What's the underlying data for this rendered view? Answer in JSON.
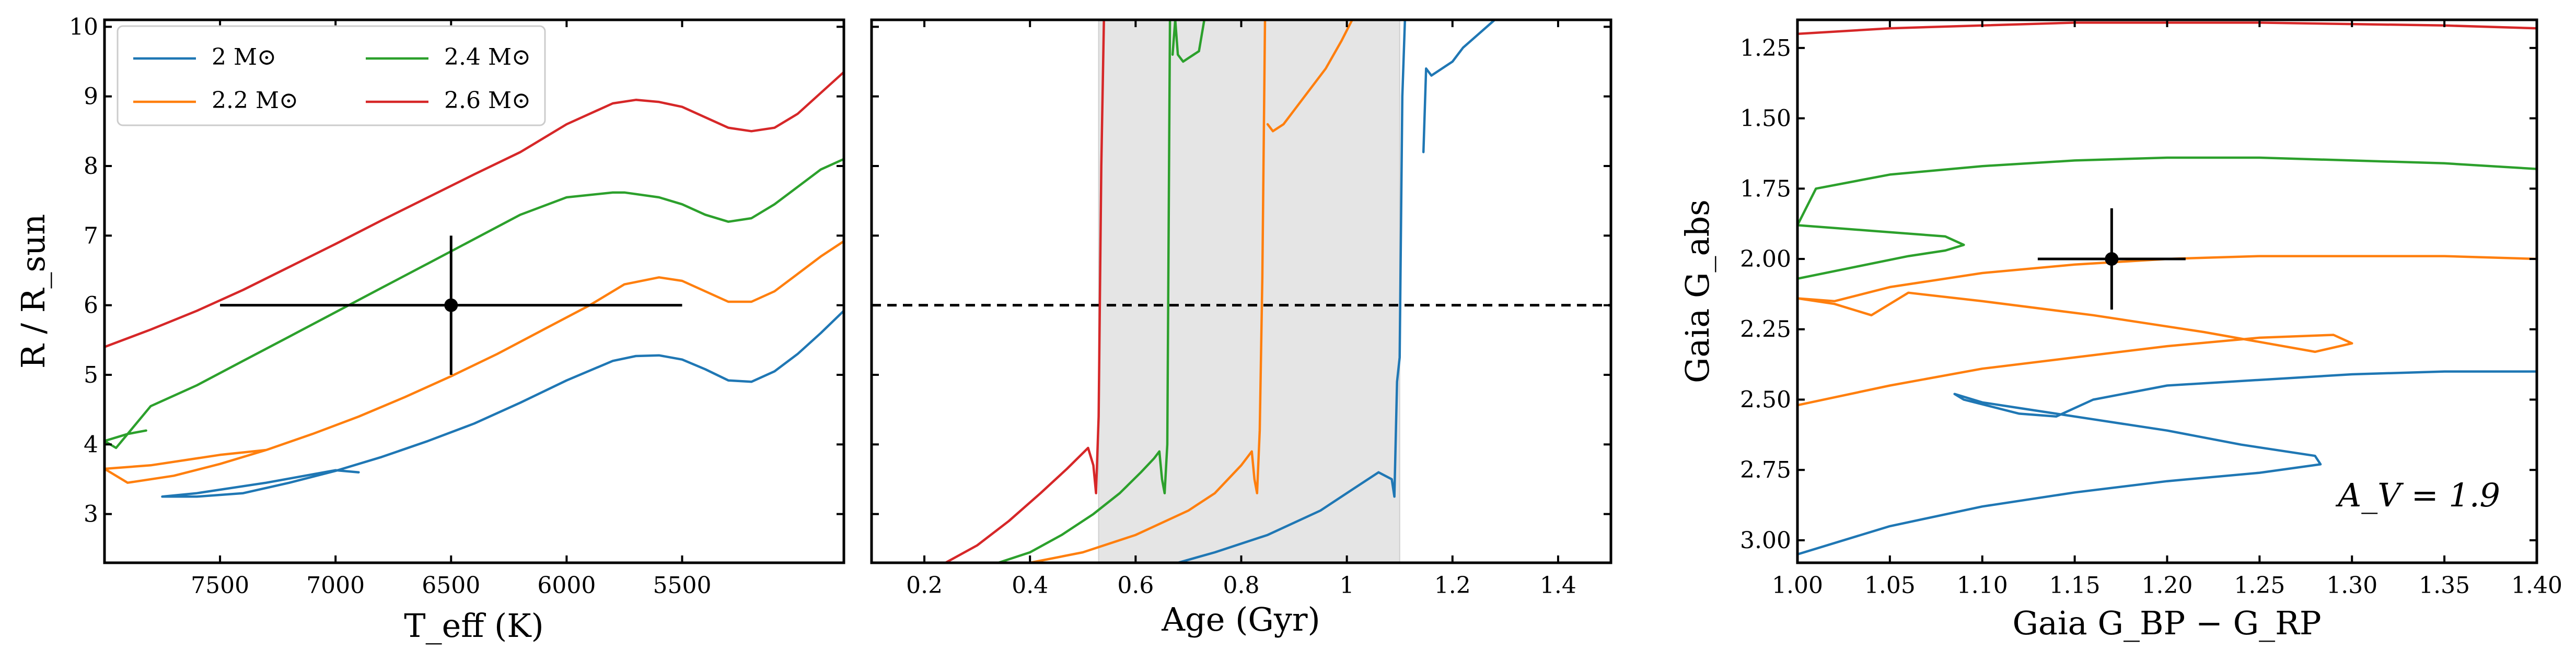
{
  "chart_data": [
    {
      "id": "hr",
      "type": "line",
      "xlabel": "T_eff (K)",
      "ylabel": "R / R_sun",
      "xlim": [
        8000,
        4800
      ],
      "ylim": [
        2.3,
        10.1
      ],
      "x_ticks": [
        7500,
        7000,
        6500,
        6000,
        5500
      ],
      "y_ticks": [
        3,
        4,
        5,
        6,
        7,
        8,
        9,
        10
      ],
      "legend": {
        "position": "top-left",
        "entries": [
          {
            "label": "2 M⊙",
            "color": "#1f77b4"
          },
          {
            "label": "2.2 M⊙",
            "color": "#ff7f0e"
          },
          {
            "label": "2.4 M⊙",
            "color": "#2ca02c"
          },
          {
            "label": "2.6 M⊙",
            "color": "#d62728"
          }
        ]
      },
      "series": [
        {
          "name": "2 M⊙",
          "color": "#1f77b4",
          "x": [
            6900,
            7000,
            7300,
            7600,
            7750,
            7600,
            7400,
            7200,
            7000,
            6800,
            6600,
            6400,
            6200,
            6000,
            5800,
            5700,
            5600,
            5500,
            5400,
            5300,
            5200,
            5100,
            5000,
            4900,
            4800
          ],
          "y": [
            3.6,
            3.63,
            3.45,
            3.3,
            3.25,
            3.25,
            3.3,
            3.45,
            3.62,
            3.82,
            4.05,
            4.3,
            4.6,
            4.92,
            5.2,
            5.27,
            5.28,
            5.22,
            5.08,
            4.92,
            4.9,
            5.05,
            5.3,
            5.6,
            5.92
          ]
        },
        {
          "name": "2.2 M⊙",
          "color": "#ff7f0e",
          "x": [
            7300,
            7500,
            7800,
            8000,
            7900,
            7700,
            7500,
            7300,
            7100,
            6900,
            6700,
            6500,
            6300,
            6100,
            5900,
            5750,
            5600,
            5500,
            5400,
            5300,
            5200,
            5100,
            5000,
            4900,
            4800
          ],
          "y": [
            3.92,
            3.85,
            3.7,
            3.65,
            3.45,
            3.55,
            3.72,
            3.92,
            4.15,
            4.4,
            4.68,
            4.98,
            5.3,
            5.65,
            6.0,
            6.3,
            6.4,
            6.35,
            6.2,
            6.05,
            6.05,
            6.2,
            6.45,
            6.7,
            6.92
          ]
        },
        {
          "name": "2.4 M⊙",
          "color": "#2ca02c",
          "x": [
            7820,
            7900,
            8000,
            7950,
            7800,
            7600,
            7400,
            7200,
            7000,
            6800,
            6600,
            6400,
            6200,
            6000,
            5800,
            5750,
            5600,
            5500,
            5400,
            5300,
            5200,
            5100,
            5000,
            4900,
            4800
          ],
          "y": [
            4.2,
            4.15,
            4.05,
            3.95,
            4.55,
            4.85,
            5.2,
            5.55,
            5.9,
            6.25,
            6.6,
            6.95,
            7.3,
            7.55,
            7.62,
            7.62,
            7.55,
            7.45,
            7.3,
            7.2,
            7.25,
            7.45,
            7.7,
            7.95,
            8.1
          ]
        },
        {
          "name": "2.6 M⊙",
          "color": "#d62728",
          "x": [
            8000,
            7800,
            7600,
            7400,
            7200,
            7000,
            6800,
            6600,
            6400,
            6200,
            6000,
            5800,
            5700,
            5600,
            5500,
            5400,
            5300,
            5200,
            5100,
            5000,
            4900,
            4800
          ],
          "y": [
            5.4,
            5.65,
            5.92,
            6.22,
            6.55,
            6.88,
            7.22,
            7.55,
            7.88,
            8.2,
            8.6,
            8.9,
            8.95,
            8.92,
            8.85,
            8.7,
            8.55,
            8.5,
            8.55,
            8.75,
            9.05,
            9.35
          ]
        }
      ],
      "point": {
        "x": 6500,
        "y": 6.0,
        "xerr": 1000,
        "yerr": 1.0
      }
    },
    {
      "id": "age",
      "type": "line",
      "xlabel": "Age (Gyr)",
      "ylabel": "",
      "xlim": [
        0.1,
        1.5
      ],
      "ylim": [
        2.3,
        10.1
      ],
      "x_ticks": [
        0.2,
        0.4,
        0.6,
        0.8,
        1.0,
        1.2,
        1.4
      ],
      "y_ticks": [
        3,
        4,
        5,
        6,
        7,
        8,
        9,
        10
      ],
      "shaded_range": [
        0.53,
        1.1
      ],
      "hline": 6.0,
      "series": [
        {
          "name": "2 M⊙",
          "color": "#1f77b4",
          "x": [
            0.68,
            0.75,
            0.85,
            0.95,
            1.02,
            1.06,
            1.085,
            1.09,
            1.095,
            1.1,
            1.105,
            1.11,
            1.12
          ],
          "y": [
            2.3,
            2.45,
            2.7,
            3.05,
            3.4,
            3.6,
            3.5,
            3.25,
            4.9,
            5.25,
            9.0,
            10.1,
            10.1
          ]
        },
        {
          "name": "2 M⊙ (late)",
          "color": "#1f77b4",
          "x": [
            1.145,
            1.15,
            1.16,
            1.2,
            1.22,
            1.25,
            1.28
          ],
          "y": [
            8.2,
            9.4,
            9.3,
            9.5,
            9.7,
            9.9,
            10.1
          ]
        },
        {
          "name": "2.2 M⊙",
          "color": "#ff7f0e",
          "x": [
            0.4,
            0.5,
            0.6,
            0.7,
            0.75,
            0.8,
            0.82,
            0.825,
            0.83,
            0.835,
            0.84,
            0.845
          ],
          "y": [
            2.3,
            2.45,
            2.7,
            3.05,
            3.3,
            3.7,
            3.9,
            3.5,
            3.3,
            4.2,
            6.4,
            10.1
          ]
        },
        {
          "name": "2.2 M⊙ (late)",
          "color": "#ff7f0e",
          "x": [
            0.85,
            0.86,
            0.88,
            0.9,
            0.93,
            0.96,
            0.99,
            1.01
          ],
          "y": [
            8.6,
            8.5,
            8.6,
            8.8,
            9.1,
            9.4,
            9.8,
            10.1
          ]
        },
        {
          "name": "2.4 M⊙",
          "color": "#2ca02c",
          "x": [
            0.34,
            0.4,
            0.46,
            0.52,
            0.57,
            0.61,
            0.635,
            0.645,
            0.65,
            0.655,
            0.66,
            0.665
          ],
          "y": [
            2.3,
            2.45,
            2.7,
            3.0,
            3.3,
            3.6,
            3.8,
            3.9,
            3.5,
            3.3,
            4.0,
            10.1
          ]
        },
        {
          "name": "2.4 M⊙ (late)",
          "color": "#2ca02c",
          "x": [
            0.67,
            0.675,
            0.68,
            0.69,
            0.7,
            0.72,
            0.73
          ],
          "y": [
            9.6,
            10.1,
            9.6,
            9.5,
            9.55,
            9.65,
            10.1
          ]
        },
        {
          "name": "2.6 M⊙",
          "color": "#d62728",
          "x": [
            0.24,
            0.3,
            0.36,
            0.42,
            0.47,
            0.51,
            0.52,
            0.525,
            0.53,
            0.535,
            0.54
          ],
          "y": [
            2.3,
            2.55,
            2.9,
            3.3,
            3.65,
            3.95,
            3.7,
            3.3,
            4.4,
            8.0,
            10.1
          ]
        }
      ]
    },
    {
      "id": "cmd",
      "type": "line",
      "xlabel": "Gaia G_BP − G_RP",
      "ylabel": "Gaia G_abs",
      "xlim": [
        1.0,
        1.4
      ],
      "ylim": [
        3.08,
        1.15
      ],
      "x_ticks": [
        1.0,
        1.05,
        1.1,
        1.15,
        1.2,
        1.25,
        1.3,
        1.35,
        1.4
      ],
      "y_ticks": [
        1.25,
        1.5,
        1.75,
        2.0,
        2.25,
        2.5,
        2.75,
        3.0
      ],
      "x_tick_labels": [
        "1.00",
        "1.05",
        "1.10",
        "1.15",
        "1.20",
        "1.25",
        "1.30",
        "1.35",
        "1.40"
      ],
      "y_tick_labels": [
        "1.25",
        "1.50",
        "1.75",
        "2.00",
        "2.25",
        "2.50",
        "2.75",
        "3.00"
      ],
      "annotation": "A_V = 1.9",
      "series": [
        {
          "name": "2 M⊙",
          "color": "#1f77b4",
          "x": [
            1.0,
            1.05,
            1.1,
            1.15,
            1.2,
            1.25,
            1.283,
            1.28,
            1.24,
            1.2,
            1.16,
            1.12,
            1.1,
            1.085,
            1.09,
            1.12,
            1.14,
            1.16,
            1.2,
            1.25,
            1.3,
            1.35,
            1.4
          ],
          "y": [
            3.05,
            2.95,
            2.88,
            2.83,
            2.79,
            2.76,
            2.73,
            2.7,
            2.66,
            2.61,
            2.57,
            2.53,
            2.51,
            2.48,
            2.5,
            2.55,
            2.56,
            2.5,
            2.45,
            2.43,
            2.41,
            2.4,
            2.4
          ]
        },
        {
          "name": "2.2 M⊙",
          "color": "#ff7f0e",
          "x": [
            1.0,
            1.05,
            1.1,
            1.15,
            1.2,
            1.25,
            1.29,
            1.3,
            1.28,
            1.22,
            1.16,
            1.1,
            1.06,
            1.04,
            1.02,
            1.0,
            1.02,
            1.05,
            1.1,
            1.15,
            1.2,
            1.25,
            1.3,
            1.35,
            1.4
          ],
          "y": [
            2.52,
            2.45,
            2.39,
            2.35,
            2.31,
            2.28,
            2.27,
            2.3,
            2.33,
            2.26,
            2.2,
            2.15,
            2.12,
            2.2,
            2.16,
            2.14,
            2.15,
            2.1,
            2.05,
            2.02,
            2.0,
            1.99,
            1.99,
            1.99,
            2.0
          ]
        },
        {
          "name": "2.4 M⊙",
          "color": "#2ca02c",
          "x": [
            1.0,
            1.03,
            1.06,
            1.08,
            1.09,
            1.08,
            1.04,
            1.0,
            1.01,
            1.05,
            1.1,
            1.15,
            1.2,
            1.25,
            1.3,
            1.35,
            1.4
          ],
          "y": [
            2.07,
            2.03,
            1.99,
            1.97,
            1.95,
            1.92,
            1.9,
            1.88,
            1.75,
            1.7,
            1.67,
            1.65,
            1.64,
            1.64,
            1.65,
            1.66,
            1.68
          ]
        },
        {
          "name": "2.6 M⊙",
          "color": "#d62728",
          "x": [
            1.0,
            1.05,
            1.1,
            1.15,
            1.2,
            1.25,
            1.3,
            1.35,
            1.4
          ],
          "y": [
            1.2,
            1.18,
            1.17,
            1.16,
            1.16,
            1.16,
            1.165,
            1.17,
            1.18
          ]
        }
      ],
      "point": {
        "x": 1.17,
        "y": 2.0,
        "xerr": 0.04,
        "yerr": 0.18
      }
    }
  ]
}
